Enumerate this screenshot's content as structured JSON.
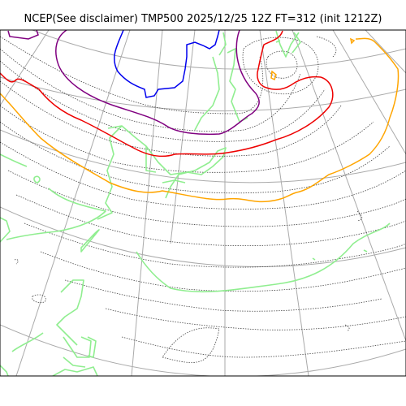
{
  "title": "NCEP(See disclaimer) TMP500 2025/12/25 12Z FT=312 (init 1212Z)",
  "colors": {
    "frame": "#000000",
    "graticule": "#aaaaaa",
    "temp_contour": "#444444",
    "isotherm_violet": "#800080",
    "isotherm_blue": "#0000ee",
    "isotherm_red": "#ee0000",
    "isotherm_orange": "#ffa500",
    "coastline": "#90ee90"
  },
  "icons": [
    "map-frame",
    "graticule-lines",
    "temperature-contours",
    "isotherms",
    "coastlines"
  ]
}
